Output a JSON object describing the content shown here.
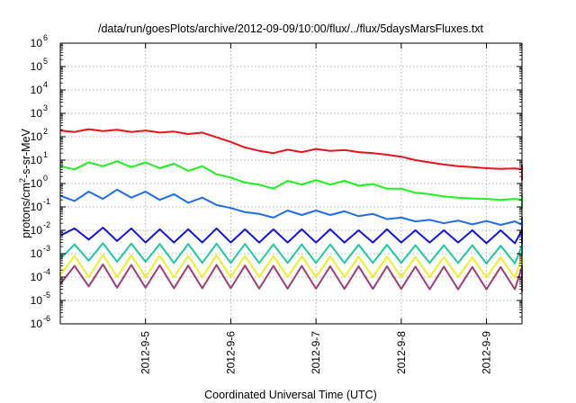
{
  "chart_data": {
    "type": "line",
    "title": "/data/run/goesPlots/archive/2012-09-09/10:00/flux/../flux/5daysMarsFluxes.txt",
    "xlabel": "Coordinated Universal Time (UTC)",
    "ylabel": "protons/cm²-s-sr-MeV",
    "ylabel_parts": {
      "before": "protons/cm",
      "sup": "2",
      "after": "-s-sr-MeV"
    },
    "yscale": "log",
    "ylim": [
      1e-06,
      1000000.0
    ],
    "xlim": [
      "2012-09-04T00:00",
      "2012-09-09T10:00"
    ],
    "grid": true,
    "legend": "none",
    "x_ticks": [
      "2012-09-05",
      "2012-09-06",
      "2012-09-07",
      "2012-09-08",
      "2012-09-09"
    ],
    "x_tick_labels": [
      "2012-9-5",
      "2012-9-6",
      "2012-9-7",
      "2012-9-8",
      "2012-9-9"
    ],
    "y_tick_exponents": [
      -6,
      -5,
      -4,
      -3,
      -2,
      -1,
      0,
      1,
      2,
      3,
      4,
      5,
      6
    ],
    "y_tick_base": "10",
    "sample_step_hours": 4,
    "series": [
      {
        "color": "#e8141c",
        "values": [
          185,
          160,
          210,
          175,
          200,
          160,
          185,
          150,
          165,
          130,
          150,
          95,
          60,
          35,
          25,
          20,
          28,
          22,
          30,
          25,
          27,
          22,
          20,
          17,
          14,
          10,
          8,
          6.5,
          5.5,
          5,
          4.5,
          4.2,
          4.4,
          4.0,
          4.5,
          4.0,
          6.0,
          4.8,
          5.5,
          4.5,
          4.8,
          4.0,
          3.8,
          3.4,
          3.1,
          2.9,
          2.7,
          2.6,
          2.5,
          2.4,
          2.4,
          2.3,
          2.3,
          2.2,
          2.1,
          2.1,
          2.0,
          2.0,
          2.0,
          1.95,
          1.95,
          2.4,
          1.9,
          2.3,
          1.9,
          2.2,
          1.85,
          2.2,
          1.85,
          2.1,
          1.8,
          2.1,
          1.8,
          2.0,
          1.8,
          2.0,
          1.75,
          1.9,
          1.75,
          1.8,
          1.7,
          1.75,
          1.65,
          1.7,
          1.6,
          1.6,
          1.55,
          1.5,
          1.5,
          1.45,
          1.5,
          1.45,
          1.4,
          1.4,
          1.45,
          1.4,
          1.45,
          1.4,
          1.4,
          1.45
        ]
      },
      {
        "color": "#1ef21e",
        "values": [
          5.5,
          4,
          8,
          5.5,
          9,
          5,
          8,
          4.5,
          7,
          3.5,
          5.5,
          2.5,
          1.8,
          1.1,
          0.9,
          0.6,
          1.3,
          0.9,
          1.4,
          0.9,
          1.3,
          0.8,
          0.95,
          0.6,
          0.6,
          0.4,
          0.35,
          0.28,
          0.25,
          0.23,
          0.22,
          0.2,
          0.22,
          0.2,
          0.23,
          0.2,
          0.35,
          0.25,
          0.3,
          0.22,
          0.26,
          0.2,
          0.21,
          0.18,
          0.19,
          0.17,
          0.18,
          0.16,
          0.17,
          0.155,
          0.165,
          0.15,
          0.16,
          0.15,
          0.155,
          0.145,
          0.15,
          0.14,
          0.145,
          0.135,
          0.14,
          0.15,
          0.13,
          0.15,
          0.13,
          0.145,
          0.125,
          0.145,
          0.12,
          0.14,
          0.12,
          0.135,
          0.115,
          0.13,
          0.115,
          0.13,
          0.11,
          0.125,
          0.105,
          0.12,
          0.1,
          0.12,
          0.1,
          0.115,
          0.095,
          0.11,
          0.095,
          0.11,
          0.09,
          0.105,
          0.09,
          0.1,
          0.09,
          0.1,
          0.085,
          0.1,
          0.085,
          0.095,
          0.09,
          0.095
        ]
      },
      {
        "color": "#1e6ef0",
        "values": [
          0.3,
          0.18,
          0.45,
          0.22,
          0.55,
          0.25,
          0.45,
          0.2,
          0.35,
          0.15,
          0.25,
          0.12,
          0.09,
          0.06,
          0.05,
          0.035,
          0.07,
          0.045,
          0.07,
          0.045,
          0.065,
          0.04,
          0.05,
          0.03,
          0.035,
          0.024,
          0.028,
          0.02,
          0.026,
          0.018,
          0.025,
          0.017,
          0.024,
          0.017,
          0.024,
          0.016,
          0.035,
          0.02,
          0.03,
          0.018,
          0.026,
          0.016,
          0.024,
          0.015,
          0.022,
          0.014,
          0.021,
          0.013,
          0.02,
          0.013,
          0.02,
          0.012,
          0.019,
          0.012,
          0.019,
          0.012,
          0.018,
          0.011,
          0.018,
          0.011,
          0.018,
          0.012,
          0.017,
          0.011,
          0.017,
          0.011,
          0.017,
          0.011,
          0.017,
          0.011,
          0.016,
          0.01,
          0.016,
          0.01,
          0.016,
          0.01,
          0.016,
          0.01,
          0.015,
          0.0095,
          0.015,
          0.0095,
          0.015,
          0.0095,
          0.015,
          0.009,
          0.015,
          0.009,
          0.014,
          0.009,
          0.014,
          0.009,
          0.014,
          0.009,
          0.014,
          0.009,
          0.014,
          0.009,
          0.014,
          0.009
        ]
      },
      {
        "color": "#1414e6",
        "values": [
          0.006,
          0.012,
          0.004,
          0.013,
          0.0035,
          0.012,
          0.003,
          0.011,
          0.003,
          0.011,
          0.003,
          0.012,
          0.003,
          0.011,
          0.003,
          0.011,
          0.003,
          0.011,
          0.003,
          0.011,
          0.003,
          0.01,
          0.003,
          0.011,
          0.003,
          0.01,
          0.003,
          0.01,
          0.003,
          0.01,
          0.0028,
          0.01,
          0.0028,
          0.01,
          0.0028,
          0.0095,
          0.0035,
          0.012,
          0.003,
          0.01,
          0.0028,
          0.0095,
          0.0028,
          0.0095,
          0.0028,
          0.0095,
          0.0028,
          0.0095,
          0.0028,
          0.009,
          0.0027,
          0.009,
          0.0027,
          0.009,
          0.0027,
          0.009,
          0.0027,
          0.009,
          0.0027,
          0.009,
          0.0027,
          0.009,
          0.0026,
          0.009,
          0.0026,
          0.009,
          0.0026,
          0.009,
          0.0026,
          0.009,
          0.0026,
          0.009,
          0.0026,
          0.0085,
          0.0026,
          0.0085,
          0.0025,
          0.0085,
          0.0025,
          0.0085,
          0.0025,
          0.0085,
          0.0025,
          0.0085,
          0.0025,
          0.0085,
          0.0025,
          0.008,
          0.0025,
          0.008,
          0.0025,
          0.008,
          0.0025,
          0.008,
          0.0025,
          0.008,
          0.0024,
          0.008,
          0.0024,
          0.008
        ]
      },
      {
        "color": "#1ec8a0",
        "values": [
          0.0006,
          0.0025,
          0.0005,
          0.0028,
          0.00045,
          0.0027,
          0.00045,
          0.0026,
          0.0004,
          0.0026,
          0.0004,
          0.0027,
          0.0004,
          0.0026,
          0.0004,
          0.0025,
          0.0004,
          0.0025,
          0.0004,
          0.0025,
          0.0004,
          0.0024,
          0.0004,
          0.0024,
          0.0004,
          0.0023,
          0.0004,
          0.0023,
          0.0004,
          0.0023,
          0.00038,
          0.0022,
          0.00038,
          0.0022,
          0.00038,
          0.0022,
          0.00045,
          0.0026,
          0.0004,
          0.0022,
          0.00038,
          0.0022,
          0.00038,
          0.0021,
          0.00037,
          0.0021,
          0.00037,
          0.0021,
          0.00037,
          0.0021,
          0.00036,
          0.002,
          0.00036,
          0.002,
          0.00036,
          0.002,
          0.00035,
          0.002,
          0.00035,
          0.002,
          0.00035,
          0.002,
          0.00035,
          0.002,
          0.00035,
          0.0019,
          0.00034,
          0.0019,
          0.00034,
          0.0019,
          0.00034,
          0.0019,
          0.00034,
          0.0019,
          0.00034,
          0.0019,
          0.00033,
          0.0018,
          0.00033,
          0.0018,
          0.00033,
          0.0018,
          0.00033,
          0.0018,
          0.00033,
          0.0018,
          0.00033,
          0.0018,
          0.00032,
          0.0018,
          0.00032,
          0.0018,
          0.00032,
          0.0017,
          0.00032,
          0.0017,
          0.00032,
          0.0017,
          0.00032,
          0.0017
        ]
      },
      {
        "color": "#f0f028",
        "values": [
          0.00012,
          0.0008,
          0.0001,
          0.0009,
          0.0001,
          0.00085,
          0.0001,
          0.00082,
          0.0001,
          0.0008,
          0.0001,
          0.00085,
          0.0001,
          0.0008,
          0.0001,
          0.00078,
          0.0001,
          0.00078,
          0.0001,
          0.00076,
          0.0001,
          0.00075,
          0.0001,
          0.00075,
          0.0001,
          0.00072,
          0.0001,
          0.00072,
          0.0001,
          0.0007,
          9.5e-05,
          0.0007,
          9.5e-05,
          0.0007,
          9.5e-05,
          0.00068,
          0.00011,
          0.0008,
          0.0001,
          0.0007,
          9.5e-05,
          0.00068,
          9.5e-05,
          0.00067,
          9.4e-05,
          0.00066,
          9.4e-05,
          0.00066,
          9.3e-05,
          0.00065,
          9.3e-05,
          0.00065,
          9.2e-05,
          0.00064,
          9.2e-05,
          0.00064,
          9.1e-05,
          0.00063,
          9.1e-05,
          0.00063,
          9e-05,
          0.00063,
          9e-05,
          0.00062,
          9e-05,
          0.00062,
          9e-05,
          0.00061,
          8.9e-05,
          0.00061,
          8.9e-05,
          0.0006,
          8.8e-05,
          0.0006,
          8.8e-05,
          0.0006,
          8.7e-05,
          0.00059,
          8.7e-05,
          0.00059,
          8.6e-05,
          0.00058,
          8.6e-05,
          0.00058,
          8.5e-05,
          0.00058,
          8.5e-05,
          0.00057,
          8.5e-05,
          0.00057,
          8.4e-05,
          0.00057,
          8.4e-05,
          0.00056,
          8.4e-05,
          0.00056,
          8.3e-05,
          0.00056,
          8.3e-05,
          0.00055
        ]
      },
      {
        "color": "#a03c78",
        "values": [
          5e-05,
          0.0003,
          4e-05,
          0.00035,
          3.5e-05,
          0.00033,
          3.5e-05,
          0.00032,
          3.3e-05,
          0.00031,
          3.3e-05,
          0.00033,
          3.3e-05,
          0.00031,
          3.2e-05,
          0.0003,
          3.2e-05,
          0.0003,
          3.2e-05,
          0.00029,
          3.1e-05,
          0.00029,
          3.1e-05,
          0.00029,
          3.1e-05,
          0.00028,
          3e-05,
          0.00028,
          3e-05,
          0.00027,
          3e-05,
          0.00027,
          3e-05,
          0.00027,
          3e-05,
          0.00026,
          3.5e-05,
          0.0003,
          3e-05,
          0.00026,
          3e-05,
          0.00026,
          2.9e-05,
          0.00025,
          2.9e-05,
          0.00025,
          2.9e-05,
          0.00025,
          2.8e-05,
          0.00025,
          2.8e-05,
          0.00024,
          2.8e-05,
          0.00024,
          2.8e-05,
          0.00024,
          2.7e-05,
          0.00024,
          2.7e-05,
          0.00024,
          2.7e-05,
          0.00023,
          2.7e-05,
          0.00023,
          2.7e-05,
          0.00023,
          2.6e-05,
          0.00023,
          2.6e-05,
          0.00023,
          2.6e-05,
          0.00022,
          2.6e-05,
          0.00022,
          2.6e-05,
          0.00022,
          2.5e-05,
          0.00022,
          2.5e-05,
          0.00022,
          2.5e-05,
          0.00021,
          2.5e-05,
          0.00021,
          2.5e-05,
          0.00021,
          2.5e-05,
          0.00021,
          2.4e-05,
          0.00021,
          2.4e-05,
          0.0002,
          2.4e-05,
          0.0002,
          2.4e-05,
          0.0002,
          2.4e-05,
          0.0002,
          2.4e-05,
          0.0002
        ]
      }
    ]
  }
}
